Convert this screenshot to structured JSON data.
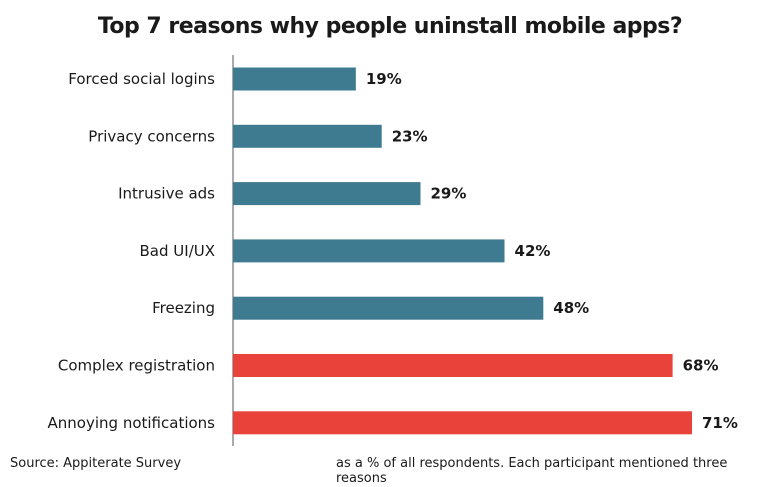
{
  "chart_data": {
    "type": "bar",
    "orientation": "horizontal",
    "title": "Top 7 reasons why people uninstall mobile apps?",
    "categories": [
      "Forced social logins",
      "Privacy concerns",
      "Intrusive ads",
      "Bad UI/UX",
      "Freezing",
      "Complex registration",
      "Annoying notifications"
    ],
    "values": [
      19,
      23,
      29,
      42,
      48,
      68,
      71
    ],
    "value_labels": [
      "19%",
      "23%",
      "29%",
      "42%",
      "48%",
      "68%",
      "71%"
    ],
    "colors": [
      "#3f7b90",
      "#3f7b90",
      "#3f7b90",
      "#3f7b90",
      "#3f7b90",
      "#e8423a",
      "#e8423a"
    ],
    "xlim": [
      0,
      100
    ],
    "grid": false,
    "xlabel": "",
    "ylabel": ""
  },
  "footer": {
    "source": "Source: Appiterate Survey",
    "note": "as a % of all respondents. Each participant  mentioned three reasons"
  }
}
